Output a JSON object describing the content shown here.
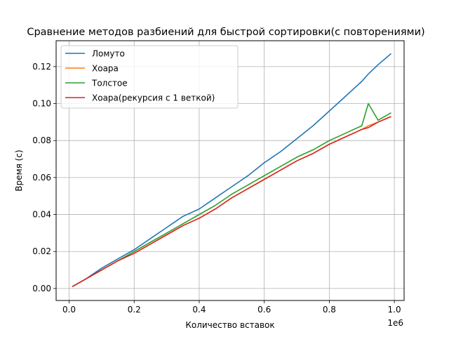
{
  "chart_data": {
    "type": "line",
    "title": "Сравнение методов разбиений для быстрой сортировки(с повторениями)",
    "xlabel": "Количество вставок",
    "ylabel": "Время (с)",
    "x_offset_label": "1e6",
    "xlim": [
      -0.04,
      1.03
    ],
    "ylim": [
      -0.0065,
      0.134
    ],
    "x_ticks": [
      0.0,
      0.2,
      0.4,
      0.6,
      0.8,
      1.0
    ],
    "x_tick_labels": [
      "0.0",
      "0.2",
      "0.4",
      "0.6",
      "0.8",
      "1.0"
    ],
    "y_ticks": [
      0.0,
      0.02,
      0.04,
      0.06,
      0.08,
      0.1,
      0.12
    ],
    "y_tick_labels": [
      "0.00",
      "0.02",
      "0.04",
      "0.06",
      "0.08",
      "0.10",
      "0.12"
    ],
    "grid": true,
    "legend_position": "top-left",
    "x": [
      0.01,
      0.05,
      0.1,
      0.15,
      0.2,
      0.25,
      0.3,
      0.35,
      0.4,
      0.45,
      0.5,
      0.55,
      0.6,
      0.65,
      0.7,
      0.75,
      0.8,
      0.85,
      0.9,
      0.92,
      0.95,
      0.99
    ],
    "series": [
      {
        "name": "Ломуто",
        "color": "#1f77b4",
        "values": [
          0.001,
          0.005,
          0.011,
          0.016,
          0.021,
          0.027,
          0.033,
          0.039,
          0.043,
          0.049,
          0.055,
          0.061,
          0.068,
          0.074,
          0.081,
          0.088,
          0.096,
          0.104,
          0.112,
          0.116,
          0.121,
          0.127
        ]
      },
      {
        "name": "Хоара",
        "color": "#ff7f0e",
        "values": [
          0.001,
          0.005,
          0.01,
          0.015,
          0.019,
          0.024,
          0.029,
          0.034,
          0.038,
          0.043,
          0.049,
          0.054,
          0.059,
          0.064,
          0.069,
          0.073,
          0.078,
          0.082,
          0.086,
          0.088,
          0.09,
          0.093
        ]
      },
      {
        "name": "Толстое",
        "color": "#2ca02c",
        "values": [
          0.001,
          0.005,
          0.01,
          0.015,
          0.02,
          0.025,
          0.03,
          0.035,
          0.04,
          0.045,
          0.051,
          0.056,
          0.061,
          0.066,
          0.071,
          0.075,
          0.08,
          0.084,
          0.088,
          0.1,
          0.091,
          0.095
        ]
      },
      {
        "name": "Хоара(рекурсия с 1 веткой)",
        "color": "#d62728",
        "values": [
          0.001,
          0.005,
          0.01,
          0.015,
          0.019,
          0.024,
          0.029,
          0.034,
          0.038,
          0.043,
          0.049,
          0.054,
          0.059,
          0.064,
          0.069,
          0.073,
          0.078,
          0.082,
          0.086,
          0.087,
          0.09,
          0.093
        ]
      }
    ]
  }
}
